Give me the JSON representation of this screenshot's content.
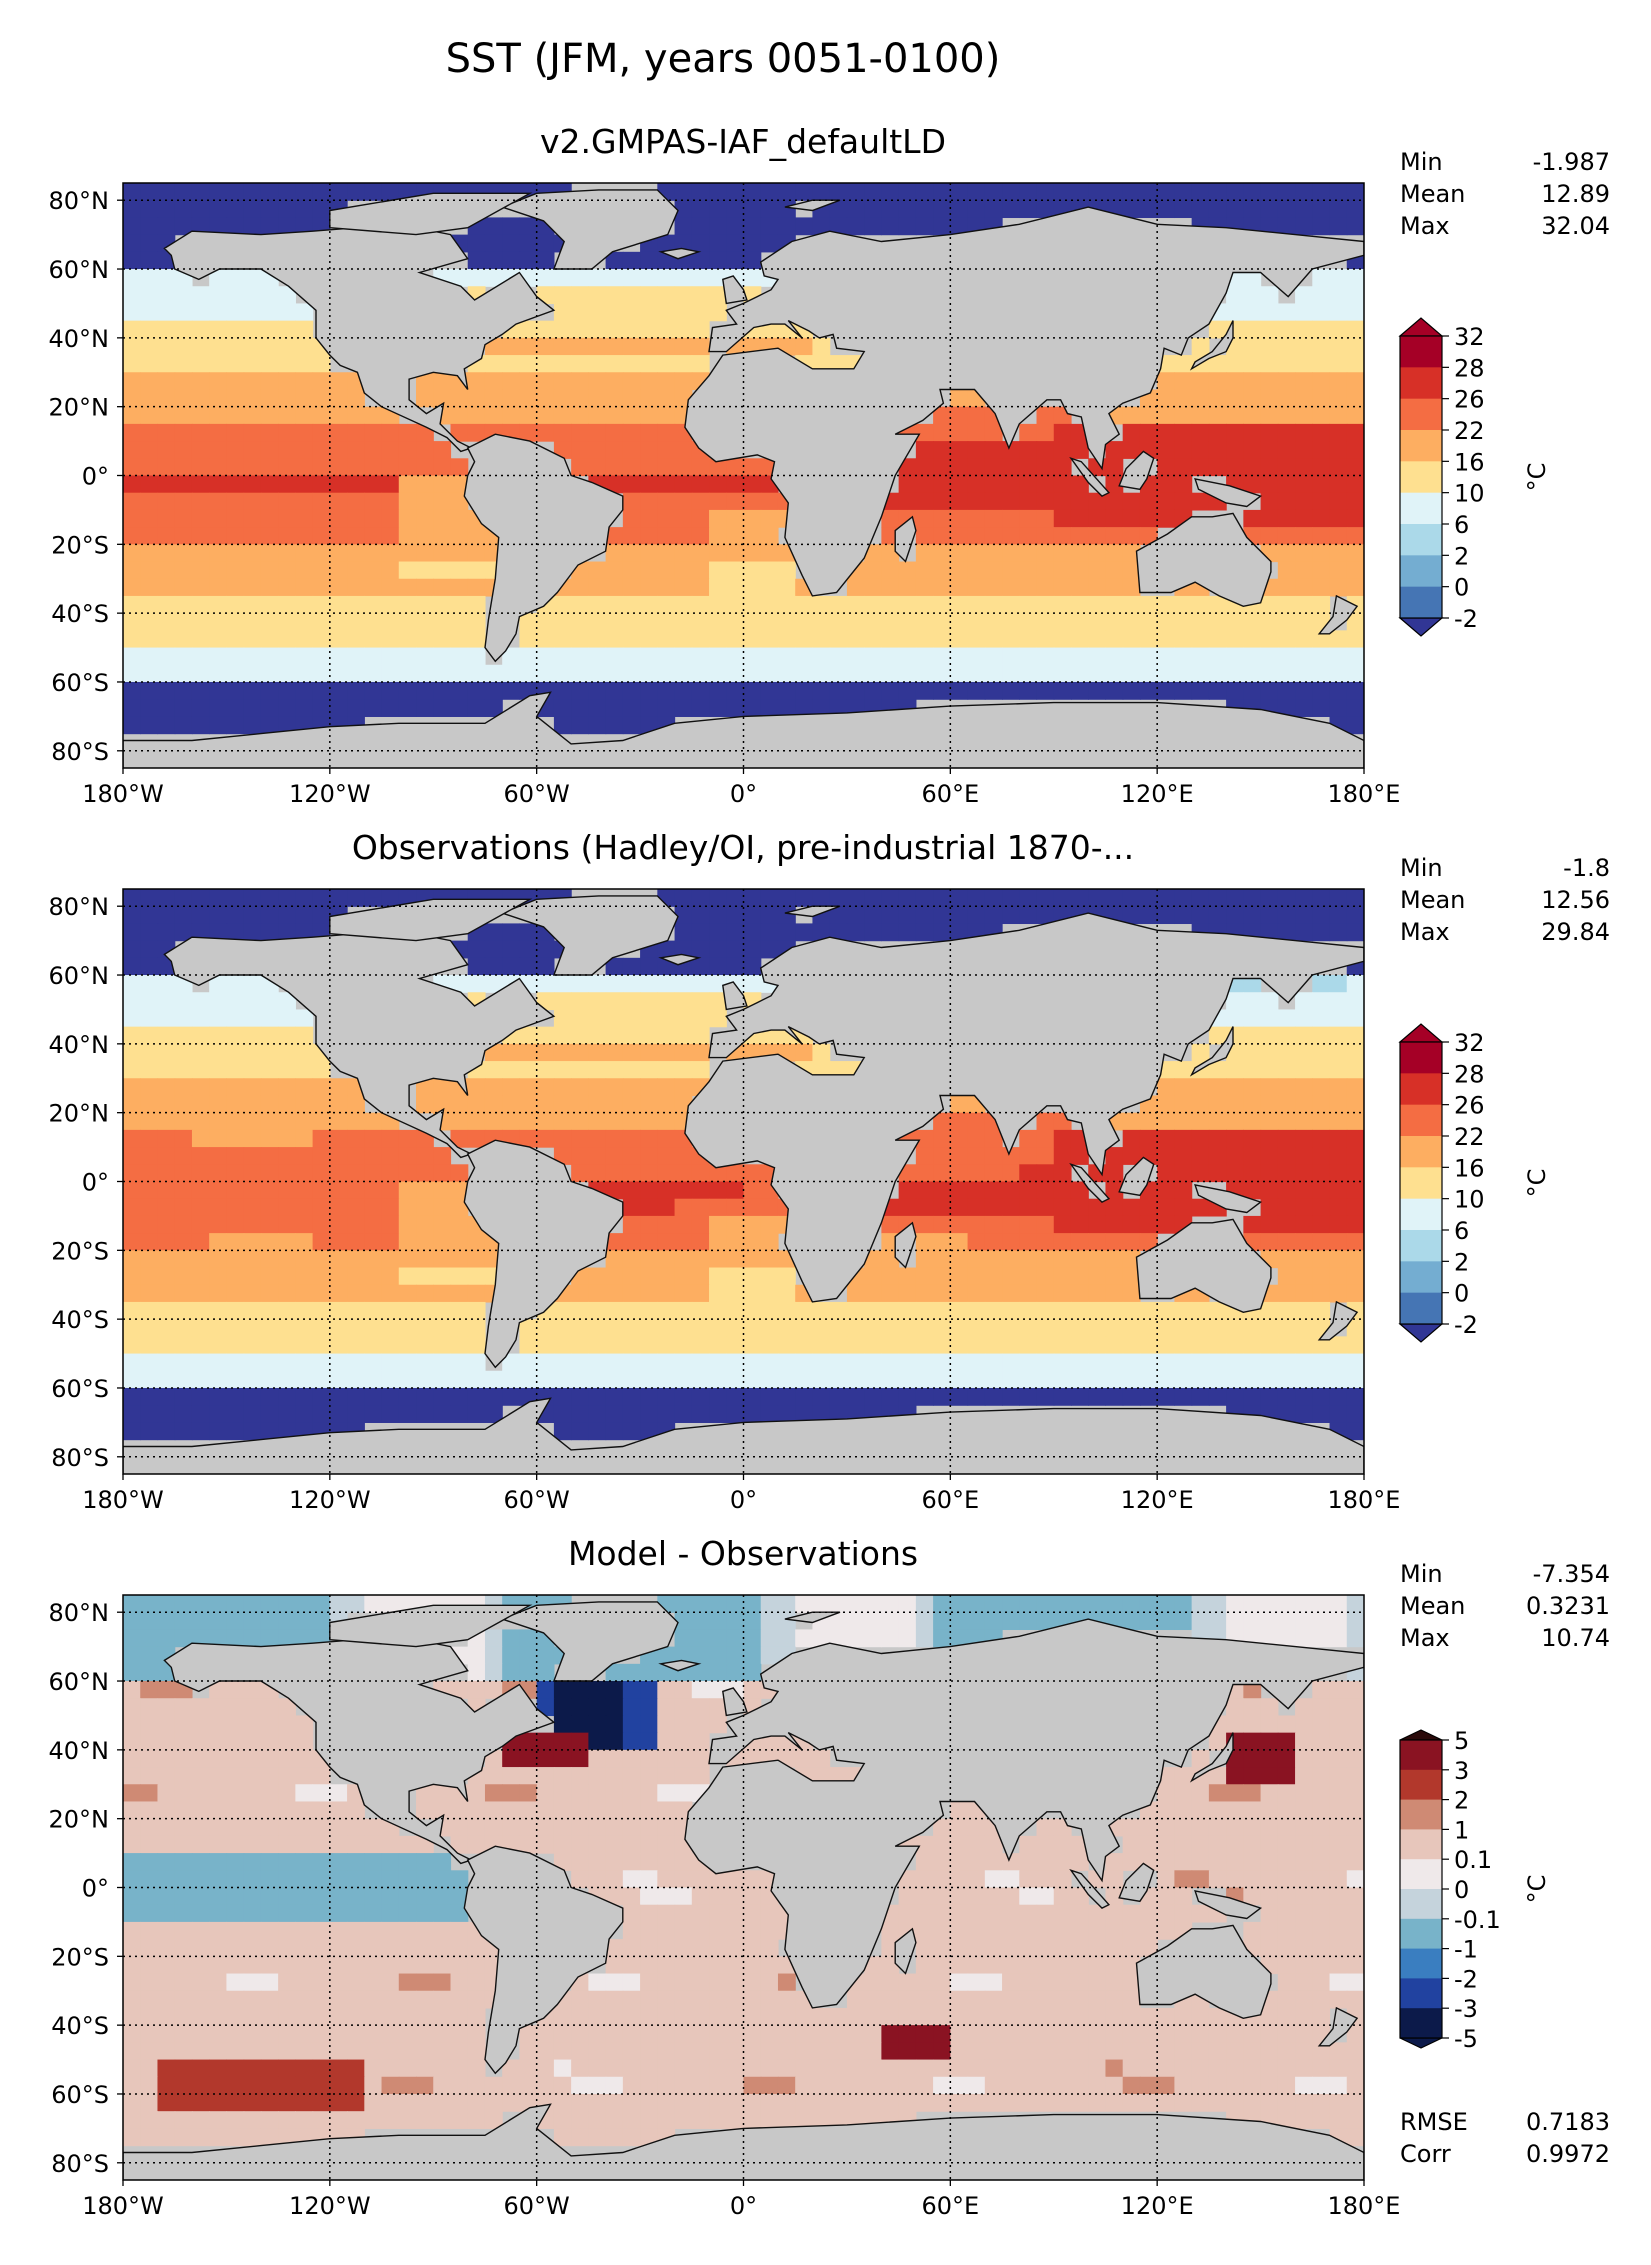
{
  "title": "SST (JFM, years 0051-0100)",
  "colors": {
    "land": "#c8c8c8",
    "sst_levels": [
      "#313695",
      "#4575b4",
      "#74add1",
      "#abd9e9",
      "#e0f3f8",
      "#fee090",
      "#fdae61",
      "#f46d43",
      "#d73027",
      "#a50026"
    ],
    "diff_levels": [
      "#0c1a4a",
      "#2142a0",
      "#3a7ec0",
      "#78b3c9",
      "#c5d3dc",
      "#efe9ea",
      "#e7c6bb",
      "#cf8a74",
      "#b2382c",
      "#8a1322",
      "#2a0a0a"
    ]
  },
  "chart_data": [
    {
      "type": "heatmap",
      "title": "v2.GMPAS-IAF_defaultLD",
      "xlabel": "",
      "ylabel": "",
      "xticks": [
        "180°W",
        "120°W",
        "60°W",
        "0°",
        "60°E",
        "120°E",
        "180°E"
      ],
      "yticks": [
        "80°N",
        "60°N",
        "40°N",
        "20°N",
        "0°",
        "20°S",
        "40°S",
        "60°S",
        "80°S"
      ],
      "xlim": [
        -180,
        180
      ],
      "ylim": [
        -85,
        85
      ],
      "stats": [
        {
          "label": "Min",
          "value": "-1.987"
        },
        {
          "label": "Mean",
          "value": "12.89"
        },
        {
          "label": "Max",
          "value": "32.04"
        }
      ],
      "colorbar": {
        "label": "°C",
        "ticks": [
          "32",
          "28",
          "26",
          "22",
          "16",
          "10",
          "6",
          "2",
          "0",
          "-2"
        ]
      },
      "field": "model"
    },
    {
      "type": "heatmap",
      "title": "Observations (Hadley/OI, pre-industrial 1870-...",
      "xlabel": "",
      "ylabel": "",
      "xticks": [
        "180°W",
        "120°W",
        "60°W",
        "0°",
        "60°E",
        "120°E",
        "180°E"
      ],
      "yticks": [
        "80°N",
        "60°N",
        "40°N",
        "20°N",
        "0°",
        "20°S",
        "40°S",
        "60°S",
        "80°S"
      ],
      "xlim": [
        -180,
        180
      ],
      "ylim": [
        -85,
        85
      ],
      "stats": [
        {
          "label": "Min",
          "value": "-1.8"
        },
        {
          "label": "Mean",
          "value": "12.56"
        },
        {
          "label": "Max",
          "value": "29.84"
        }
      ],
      "colorbar": {
        "label": "°C",
        "ticks": [
          "32",
          "28",
          "26",
          "22",
          "16",
          "10",
          "6",
          "2",
          "0",
          "-2"
        ]
      },
      "field": "obs"
    },
    {
      "type": "heatmap",
      "title": "Model - Observations",
      "xlabel": "",
      "ylabel": "",
      "xticks": [
        "180°W",
        "120°W",
        "60°W",
        "0°",
        "60°E",
        "120°E",
        "180°E"
      ],
      "yticks": [
        "80°N",
        "60°N",
        "40°N",
        "20°N",
        "0°",
        "20°S",
        "40°S",
        "60°S",
        "80°S"
      ],
      "xlim": [
        -180,
        180
      ],
      "ylim": [
        -85,
        85
      ],
      "stats": [
        {
          "label": "Min",
          "value": "-7.354"
        },
        {
          "label": "Mean",
          "value": "0.3231"
        },
        {
          "label": "Max",
          "value": "10.74"
        }
      ],
      "extra_stats": [
        {
          "label": "RMSE",
          "value": "0.7183"
        },
        {
          "label": "Corr",
          "value": "0.9972"
        }
      ],
      "colorbar": {
        "label": "°C",
        "ticks": [
          "5",
          "3",
          "2",
          "1",
          "0.1",
          "0",
          "-0.1",
          "-1",
          "-2",
          "-3",
          "-5"
        ]
      },
      "field": "diff"
    }
  ]
}
